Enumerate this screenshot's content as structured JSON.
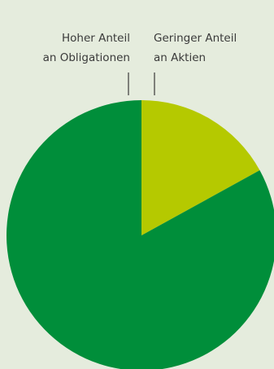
{
  "chart_data": {
    "type": "pie",
    "slices": [
      {
        "label": "Geringer Anteil an Aktien",
        "label_lines": [
          "Geringer Anteil",
          "an Aktien"
        ],
        "value": 17,
        "color": "#b5c900"
      },
      {
        "label": "Hoher Anteil an Obligationen",
        "label_lines": [
          "Hoher Anteil",
          "an Obligationen"
        ],
        "value": 83,
        "color": "#008e3a"
      }
    ],
    "title": "",
    "legend": "none"
  },
  "colors": {
    "background": "#e5ecdd",
    "leader_line": "#3a3a3a"
  }
}
